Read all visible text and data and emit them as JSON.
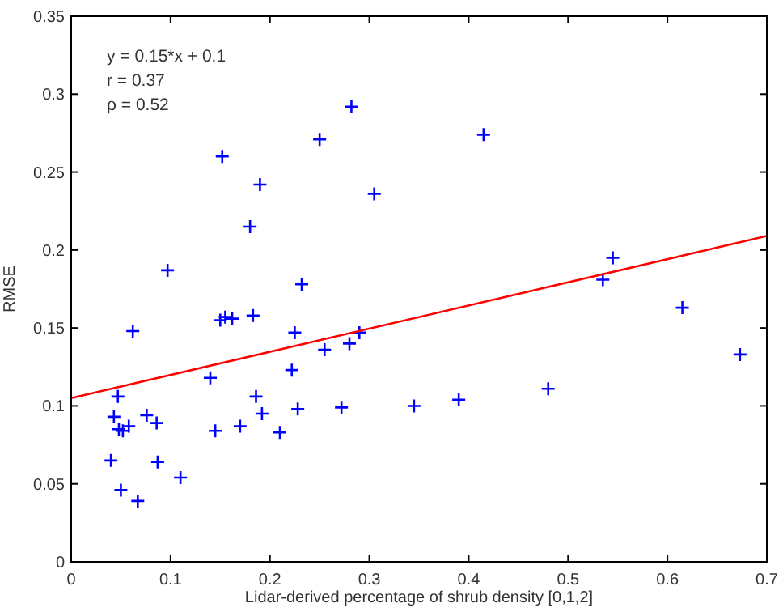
{
  "chart_data": {
    "type": "scatter",
    "xlabel": "Lidar-derived percentage of shrub density [0,1,2]",
    "ylabel": "RMSE",
    "annotations": [
      "y = 0.15*x + 0.1",
      "r =  0.37",
      "ρ =  0.52"
    ],
    "xlim": [
      0,
      0.7
    ],
    "ylim": [
      0,
      0.35
    ],
    "xticks": [
      0,
      0.1,
      0.2,
      0.3,
      0.4,
      0.5,
      0.6,
      0.7
    ],
    "yticks": [
      0,
      0.05,
      0.1,
      0.15,
      0.2,
      0.25,
      0.3,
      0.35
    ],
    "grid": false,
    "marker": "cross",
    "series": [
      {
        "color": "#0000ff",
        "x": [
          0.04,
          0.043,
          0.047,
          0.048,
          0.05,
          0.052,
          0.058,
          0.062,
          0.067,
          0.076,
          0.086,
          0.087,
          0.097,
          0.11,
          0.14,
          0.145,
          0.15,
          0.152,
          0.155,
          0.162,
          0.17,
          0.18,
          0.183,
          0.186,
          0.19,
          0.192,
          0.21,
          0.222,
          0.225,
          0.228,
          0.232,
          0.25,
          0.255,
          0.272,
          0.28,
          0.282,
          0.29,
          0.305,
          0.345,
          0.39,
          0.415,
          0.48,
          0.535,
          0.545,
          0.615,
          0.673
        ],
        "values": [
          0.065,
          0.093,
          0.106,
          0.085,
          0.046,
          0.084,
          0.087,
          0.148,
          0.039,
          0.094,
          0.089,
          0.064,
          0.187,
          0.054,
          0.118,
          0.084,
          0.155,
          0.26,
          0.157,
          0.156,
          0.087,
          0.215,
          0.158,
          0.106,
          0.242,
          0.095,
          0.083,
          0.123,
          0.147,
          0.098,
          0.178,
          0.271,
          0.136,
          0.099,
          0.14,
          0.292,
          0.147,
          0.236,
          0.1,
          0.104,
          0.274,
          0.111,
          0.181,
          0.195,
          0.163,
          0.133
        ]
      },
      {
        "type": "line",
        "color": "#ff0000",
        "x": [
          0,
          0.7
        ],
        "values": [
          0.105,
          0.209
        ],
        "marker": "none"
      }
    ]
  }
}
